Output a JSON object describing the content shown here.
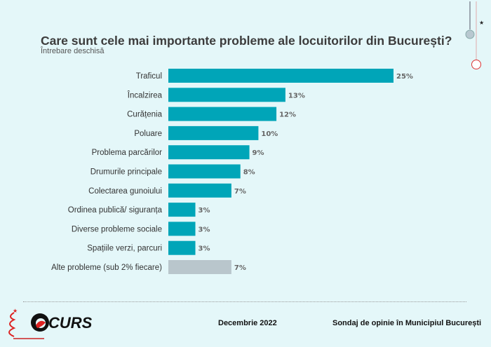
{
  "title": "Care sunt cele mai importante probleme ale locuitorilor din București?",
  "subtitle": "Întrebare deschisă",
  "chart_data": {
    "type": "bar",
    "orientation": "horizontal",
    "title": "Care sunt cele mai importante probleme ale locuitorilor din București?",
    "subtitle": "Întrebare deschisă",
    "categories": [
      "Traficul",
      "Încalzirea",
      "Curățenia",
      "Poluare",
      "Problema parcărilor",
      "Drumurile principale",
      "Colectarea gunoiului",
      "Ordinea publică/ siguranța",
      "Diverse probleme sociale",
      "Spațiile verzi, parcuri",
      "Alte probleme (sub 2% fiecare)"
    ],
    "values": [
      25,
      13,
      12,
      10,
      9,
      8,
      7,
      3,
      3,
      3,
      7
    ],
    "data_labels": [
      "25%",
      "13%",
      "12%",
      "10%",
      "9%",
      "8%",
      "7%",
      "3%",
      "3%",
      "3%",
      "7%"
    ],
    "unit": "%",
    "colors": {
      "main": "#00a5b8",
      "other": "#b9c6cc"
    },
    "grid": false,
    "legend": "none"
  },
  "footer": {
    "logo": "CURS",
    "date": "Decembrie 2022",
    "source": "Sondaj de opinie în Municipiul București"
  }
}
